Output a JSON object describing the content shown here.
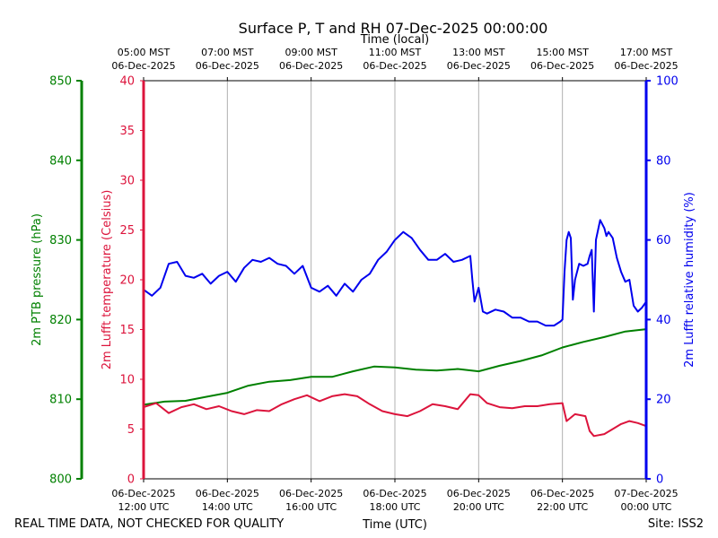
{
  "chart_data": {
    "type": "line",
    "title": "Surface P, T and RH 07-Dec-2025 00:00:00",
    "top_axis_label": "Time (local)",
    "bottom_axis_label": "Time (UTC)",
    "footer_left": "REAL TIME DATA, NOT CHECKED FOR QUALITY",
    "footer_right": "Site: ISS2",
    "xlim_hours": [
      0,
      12
    ],
    "x_unit": "hours since 06-Dec-2025 12:00 UTC",
    "grid": "vertical",
    "top_ticks": [
      {
        "t": 0,
        "l1": "05:00 MST",
        "l2": "06-Dec-2025"
      },
      {
        "t": 2,
        "l1": "07:00 MST",
        "l2": "06-Dec-2025"
      },
      {
        "t": 4,
        "l1": "09:00 MST",
        "l2": "06-Dec-2025"
      },
      {
        "t": 6,
        "l1": "11:00 MST",
        "l2": "06-Dec-2025"
      },
      {
        "t": 8,
        "l1": "13:00 MST",
        "l2": "06-Dec-2025"
      },
      {
        "t": 10,
        "l1": "15:00 MST",
        "l2": "06-Dec-2025"
      },
      {
        "t": 12,
        "l1": "17:00 MST",
        "l2": "06-Dec-2025"
      }
    ],
    "bottom_ticks": [
      {
        "t": 0,
        "l1": "06-Dec-2025",
        "l2": "12:00 UTC"
      },
      {
        "t": 2,
        "l1": "06-Dec-2025",
        "l2": "14:00 UTC"
      },
      {
        "t": 4,
        "l1": "06-Dec-2025",
        "l2": "16:00 UTC"
      },
      {
        "t": 6,
        "l1": "06-Dec-2025",
        "l2": "18:00 UTC"
      },
      {
        "t": 8,
        "l1": "06-Dec-2025",
        "l2": "20:00 UTC"
      },
      {
        "t": 10,
        "l1": "06-Dec-2025",
        "l2": "22:00 UTC"
      },
      {
        "t": 12,
        "l1": "07-Dec-2025",
        "l2": "00:00 UTC"
      }
    ],
    "axes": {
      "pressure": {
        "label": "2m PTB pressure (hPa)",
        "color": "#008000",
        "ylim": [
          800,
          850
        ],
        "ticks": [
          800,
          810,
          820,
          830,
          840,
          850
        ]
      },
      "temperature": {
        "label": "2m Lufft temperature (Celsius)",
        "color": "#dc143c",
        "ylim": [
          0,
          40
        ],
        "ticks": [
          0,
          5,
          10,
          15,
          20,
          25,
          30,
          35,
          40
        ]
      },
      "humidity": {
        "label": "2m Lufft relative humidity (%)",
        "color": "#0000ee",
        "ylim": [
          0,
          100
        ],
        "ticks": [
          0,
          20,
          40,
          60,
          80,
          100
        ]
      }
    },
    "series": [
      {
        "name": "2m PTB pressure",
        "axis": "pressure",
        "color": "#008000",
        "x": [
          0,
          0.5,
          1,
          1.5,
          2,
          2.5,
          3,
          3.5,
          4,
          4.5,
          5,
          5.5,
          6,
          6.5,
          7,
          7.5,
          8,
          8.5,
          9,
          9.5,
          10,
          10.5,
          11,
          11.5,
          12
        ],
        "values": [
          809.3,
          809.7,
          809.8,
          810.3,
          810.8,
          811.7,
          812.2,
          812.4,
          812.8,
          812.8,
          813.5,
          814.1,
          814.0,
          813.7,
          813.6,
          813.8,
          813.5,
          814.2,
          814.8,
          815.5,
          816.5,
          817.2,
          817.8,
          818.5,
          818.8
        ]
      },
      {
        "name": "2m Lufft temperature",
        "axis": "temperature",
        "color": "#dc143c",
        "x": [
          0,
          0.3,
          0.6,
          0.9,
          1.2,
          1.5,
          1.8,
          2.1,
          2.4,
          2.7,
          3.0,
          3.3,
          3.6,
          3.9,
          4.2,
          4.5,
          4.8,
          5.1,
          5.4,
          5.7,
          6.0,
          6.3,
          6.6,
          6.9,
          7.2,
          7.5,
          7.8,
          8.0,
          8.2,
          8.5,
          8.8,
          9.1,
          9.4,
          9.7,
          10.0,
          10.1,
          10.3,
          10.55,
          10.65,
          10.75,
          11.0,
          11.2,
          11.4,
          11.6,
          11.8,
          12.0
        ],
        "values": [
          7.2,
          7.6,
          6.6,
          7.2,
          7.5,
          7.0,
          7.3,
          6.8,
          6.5,
          6.9,
          6.8,
          7.5,
          8.0,
          8.4,
          7.8,
          8.3,
          8.5,
          8.3,
          7.5,
          6.8,
          6.5,
          6.3,
          6.8,
          7.5,
          7.3,
          7.0,
          8.5,
          8.4,
          7.6,
          7.2,
          7.1,
          7.3,
          7.3,
          7.5,
          7.6,
          5.8,
          6.5,
          6.3,
          4.8,
          4.3,
          4.5,
          5.0,
          5.5,
          5.8,
          5.6,
          5.3
        ]
      },
      {
        "name": "2m Lufft relative humidity",
        "axis": "humidity",
        "color": "#0000ee",
        "x": [
          0,
          0.2,
          0.4,
          0.6,
          0.8,
          1.0,
          1.2,
          1.4,
          1.6,
          1.8,
          2.0,
          2.2,
          2.4,
          2.6,
          2.8,
          3.0,
          3.2,
          3.4,
          3.6,
          3.8,
          4.0,
          4.2,
          4.4,
          4.6,
          4.8,
          5.0,
          5.2,
          5.4,
          5.6,
          5.8,
          6.0,
          6.2,
          6.4,
          6.6,
          6.8,
          7.0,
          7.2,
          7.4,
          7.6,
          7.8,
          7.85,
          7.9,
          8.0,
          8.1,
          8.2,
          8.4,
          8.6,
          8.8,
          9.0,
          9.2,
          9.4,
          9.6,
          9.8,
          9.95,
          10.0,
          10.05,
          10.1,
          10.15,
          10.2,
          10.25,
          10.3,
          10.4,
          10.5,
          10.6,
          10.65,
          10.7,
          10.75,
          10.8,
          10.9,
          11.0,
          11.05,
          11.1,
          11.2,
          11.3,
          11.4,
          11.5,
          11.6,
          11.7,
          11.8,
          11.9,
          12.0
        ],
        "values": [
          47.5,
          46.0,
          48.0,
          54.0,
          54.5,
          51.0,
          50.5,
          51.5,
          49.0,
          51.0,
          52.0,
          49.5,
          53.0,
          55.0,
          54.5,
          55.5,
          54.0,
          53.5,
          51.5,
          53.5,
          48.0,
          47.0,
          48.5,
          46.0,
          49.0,
          47.0,
          50.0,
          51.5,
          55.0,
          57.0,
          60.0,
          62.0,
          60.5,
          57.5,
          55.0,
          55.0,
          56.5,
          54.5,
          55.0,
          56.0,
          50.0,
          44.5,
          48.0,
          42.0,
          41.5,
          42.5,
          42.0,
          40.5,
          40.5,
          39.5,
          39.5,
          38.5,
          38.5,
          39.5,
          40.0,
          52.0,
          60.0,
          62.0,
          60.5,
          45.0,
          50.0,
          54.0,
          53.5,
          54.0,
          56.0,
          57.5,
          42.0,
          60.0,
          65.0,
          63.0,
          61.0,
          62.0,
          60.5,
          55.5,
          52.0,
          49.5,
          50.0,
          43.5,
          42.0,
          43.0,
          44.5
        ]
      }
    ]
  }
}
